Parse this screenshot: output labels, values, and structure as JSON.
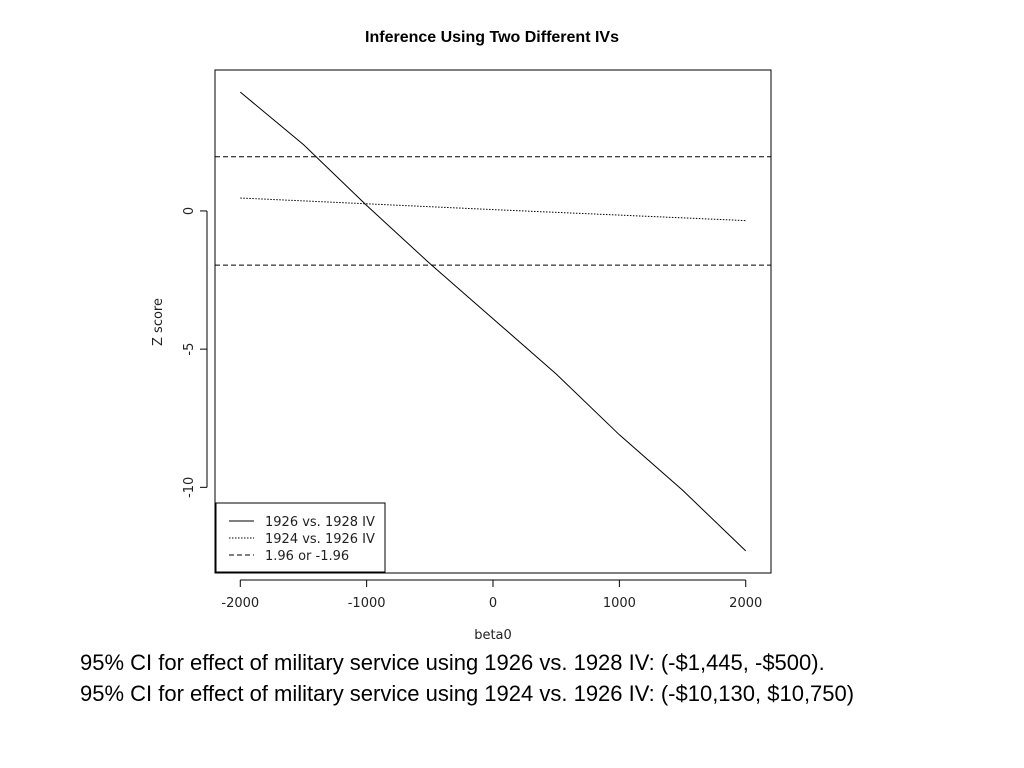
{
  "chart_data": {
    "type": "line",
    "title": "Inference Using Two Different IVs",
    "xlabel": "beta0",
    "ylabel": "Z score",
    "xlim": [
      -2200,
      2200
    ],
    "ylim": [
      -13.1,
      5.1
    ],
    "x_ticks": [
      -2000,
      -1000,
      0,
      1000,
      2000
    ],
    "x_tick_labels": [
      "-2000",
      "-1000",
      "0",
      "1000",
      "2000"
    ],
    "y_ticks": [
      0,
      -5,
      -10
    ],
    "y_tick_labels": [
      "0",
      "-5",
      "-10"
    ],
    "grid": false,
    "legend_position": "bottom-left",
    "series": [
      {
        "name": "1926 vs. 1928 IV",
        "line_style": "solid",
        "x": [
          -2000,
          -1500,
          -1000,
          -500,
          0,
          500,
          1000,
          1500,
          2000
        ],
        "y": [
          4.3,
          2.4,
          0.2,
          -1.9,
          -3.9,
          -5.9,
          -8.1,
          -10.1,
          -12.3
        ]
      },
      {
        "name": "1924 vs. 1926 IV",
        "line_style": "dotted",
        "x": [
          -2000,
          0,
          2000
        ],
        "y": [
          0.47,
          0.05,
          -0.35
        ]
      },
      {
        "name": "1.96 or -1.96",
        "line_style": "dashed",
        "hlines": [
          1.96,
          -1.96
        ]
      }
    ]
  },
  "captions": {
    "line1": "95% CI for effect of military service using 1926 vs. 1928 IV: (-$1,445, -$500).",
    "line2": "95% CI for effect of military service using 1924 vs. 1926 IV: (-$10,130, $10,750)"
  }
}
